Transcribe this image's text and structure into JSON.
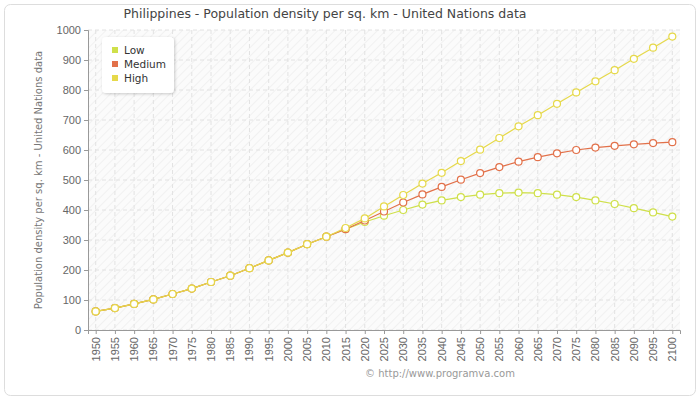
{
  "chart_data": {
    "type": "line",
    "title": "Philippines - Population density per sq. km - United Nations data",
    "y_label": "Population density per sq. km - United Nations data",
    "annotations": [
      "© http://www.programva.com"
    ],
    "x": [
      1950,
      1955,
      1960,
      1965,
      1970,
      1975,
      1980,
      1985,
      1990,
      1995,
      2000,
      2005,
      2010,
      2015,
      2020,
      2025,
      2030,
      2035,
      2040,
      2045,
      2050,
      2055,
      2060,
      2065,
      2070,
      2075,
      2080,
      2085,
      2090,
      2095,
      2100
    ],
    "series": [
      {
        "name": "Low",
        "color": "#cfe04a",
        "values": [
          62,
          73,
          87,
          102,
          120,
          138,
          160,
          181,
          206,
          232,
          258,
          286,
          311,
          336,
          360,
          381,
          400,
          418,
          432,
          443,
          451,
          456,
          458,
          456,
          451,
          443,
          432,
          420,
          406,
          392,
          378
        ]
      },
      {
        "name": "Medium",
        "color": "#e2714a",
        "values": [
          62,
          73,
          87,
          102,
          120,
          138,
          160,
          181,
          206,
          232,
          258,
          286,
          311,
          336,
          365,
          395,
          425,
          452,
          477,
          501,
          523,
          543,
          561,
          576,
          589,
          600,
          608,
          614,
          619,
          623,
          626
        ]
      },
      {
        "name": "High",
        "color": "#e6d94a",
        "values": [
          62,
          73,
          87,
          102,
          120,
          138,
          160,
          181,
          206,
          232,
          258,
          286,
          311,
          340,
          372,
          412,
          450,
          488,
          524,
          563,
          601,
          640,
          679,
          716,
          754,
          792,
          829,
          866,
          904,
          941,
          978
        ]
      }
    ],
    "xlim": [
      1948,
      2102
    ],
    "xticks": [
      1950,
      1955,
      1960,
      1965,
      1970,
      1975,
      1980,
      1985,
      1990,
      1995,
      2000,
      2005,
      2010,
      2015,
      2020,
      2025,
      2030,
      2035,
      2040,
      2045,
      2050,
      2055,
      2060,
      2065,
      2070,
      2075,
      2080,
      2085,
      2090,
      2095,
      2100
    ],
    "ylim": [
      0,
      1000
    ],
    "yticks": [
      0,
      100,
      200,
      300,
      400,
      500,
      600,
      700,
      800,
      900,
      1000
    ],
    "grid": true,
    "legend": "upper left",
    "marker": "circle",
    "line_style": "solid"
  }
}
